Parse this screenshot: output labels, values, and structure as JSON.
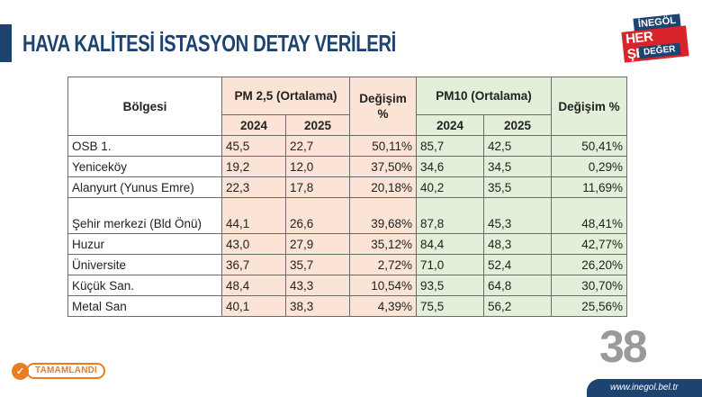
{
  "header": {
    "title": "HAVA KALİTESİ İSTASYON DETAY VERİLERİ",
    "logo": {
      "line1": "İNEGÖL",
      "line2": "HER ŞEYE",
      "line3": "DEĞER"
    }
  },
  "table": {
    "headers": {
      "region": "Bölgesi",
      "pm25_group": "PM 2,5 (Ortalama)",
      "pm25_2024": "2024",
      "pm25_2025": "2025",
      "pm25_change": "Değişim %",
      "pm10_group": "PM10 (Ortalama)",
      "pm10_2024": "2024",
      "pm10_2025": "2025",
      "pm10_change": "Değişim %"
    },
    "rows": [
      {
        "region": "OSB 1.",
        "pm25_2024": "45,5",
        "pm25_2025": "22,7",
        "pm25_change": "50,11%",
        "pm10_2024": "85,7",
        "pm10_2025": "42,5",
        "pm10_change": "50,41%"
      },
      {
        "region": "Yeniceköy",
        "pm25_2024": "19,2",
        "pm25_2025": "12,0",
        "pm25_change": "37,50%",
        "pm10_2024": "34,6",
        "pm10_2025": "34,5",
        "pm10_change": "0,29%"
      },
      {
        "region": "Alanyurt (Yunus Emre)",
        "pm25_2024": "22,3",
        "pm25_2025": "17,8",
        "pm25_change": "20,18%",
        "pm10_2024": "40,2",
        "pm10_2025": "35,5",
        "pm10_change": "11,69%"
      },
      {
        "region": "Şehir merkezi (Bld Önü)",
        "pm25_2024": "44,1",
        "pm25_2025": "26,6",
        "pm25_change": "39,68%",
        "pm10_2024": "87,8",
        "pm10_2025": "45,3",
        "pm10_change": "48,41%"
      },
      {
        "region": "Huzur",
        "pm25_2024": "43,0",
        "pm25_2025": "27,9",
        "pm25_change": "35,12%",
        "pm10_2024": "84,4",
        "pm10_2025": "48,3",
        "pm10_change": "42,77%"
      },
      {
        "region": "Üniversite",
        "pm25_2024": "36,7",
        "pm25_2025": "35,7",
        "pm25_change": "2,72%",
        "pm10_2024": "71,0",
        "pm10_2025": "52,4",
        "pm10_change": "26,20%"
      },
      {
        "region": "Küçük San.",
        "pm25_2024": "48,4",
        "pm25_2025": "43,3",
        "pm25_change": "10,54%",
        "pm10_2024": "93,5",
        "pm10_2025": "64,8",
        "pm10_change": "30,70%"
      },
      {
        "region": "Metal San",
        "pm25_2024": "40,1",
        "pm25_2025": "38,3",
        "pm25_change": "4,39%",
        "pm10_2024": "75,5",
        "pm10_2025": "56,2",
        "pm10_change": "25,56%"
      }
    ]
  },
  "footer": {
    "status_badge": "TAMAMLANDI",
    "status_icon": "check-icon",
    "page_number": "38",
    "url": "www.inegol.bel.tr"
  },
  "colors": {
    "brand_blue": "#1d4470",
    "pm25_fill": "#fbe4d5",
    "pm10_fill": "#e2efd9",
    "badge_orange": "#ee7b1d"
  }
}
